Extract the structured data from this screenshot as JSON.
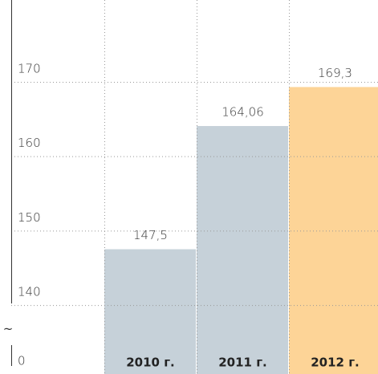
{
  "chart_data": {
    "type": "bar",
    "categories": [
      "2010 г.",
      "2011 г.",
      "2012 г."
    ],
    "values": [
      147.5,
      164.06,
      169.3
    ],
    "value_labels": [
      "147,5",
      "164,06",
      "169,3"
    ],
    "colors": [
      "#c6d1d9",
      "#c6d1d9",
      "#fdd497"
    ],
    "ylim": [
      0,
      181
    ],
    "ybreak": [
      0,
      131
    ],
    "break_mark": "~",
    "yticks": [
      0,
      140,
      150,
      160,
      170
    ],
    "grid": true
  }
}
